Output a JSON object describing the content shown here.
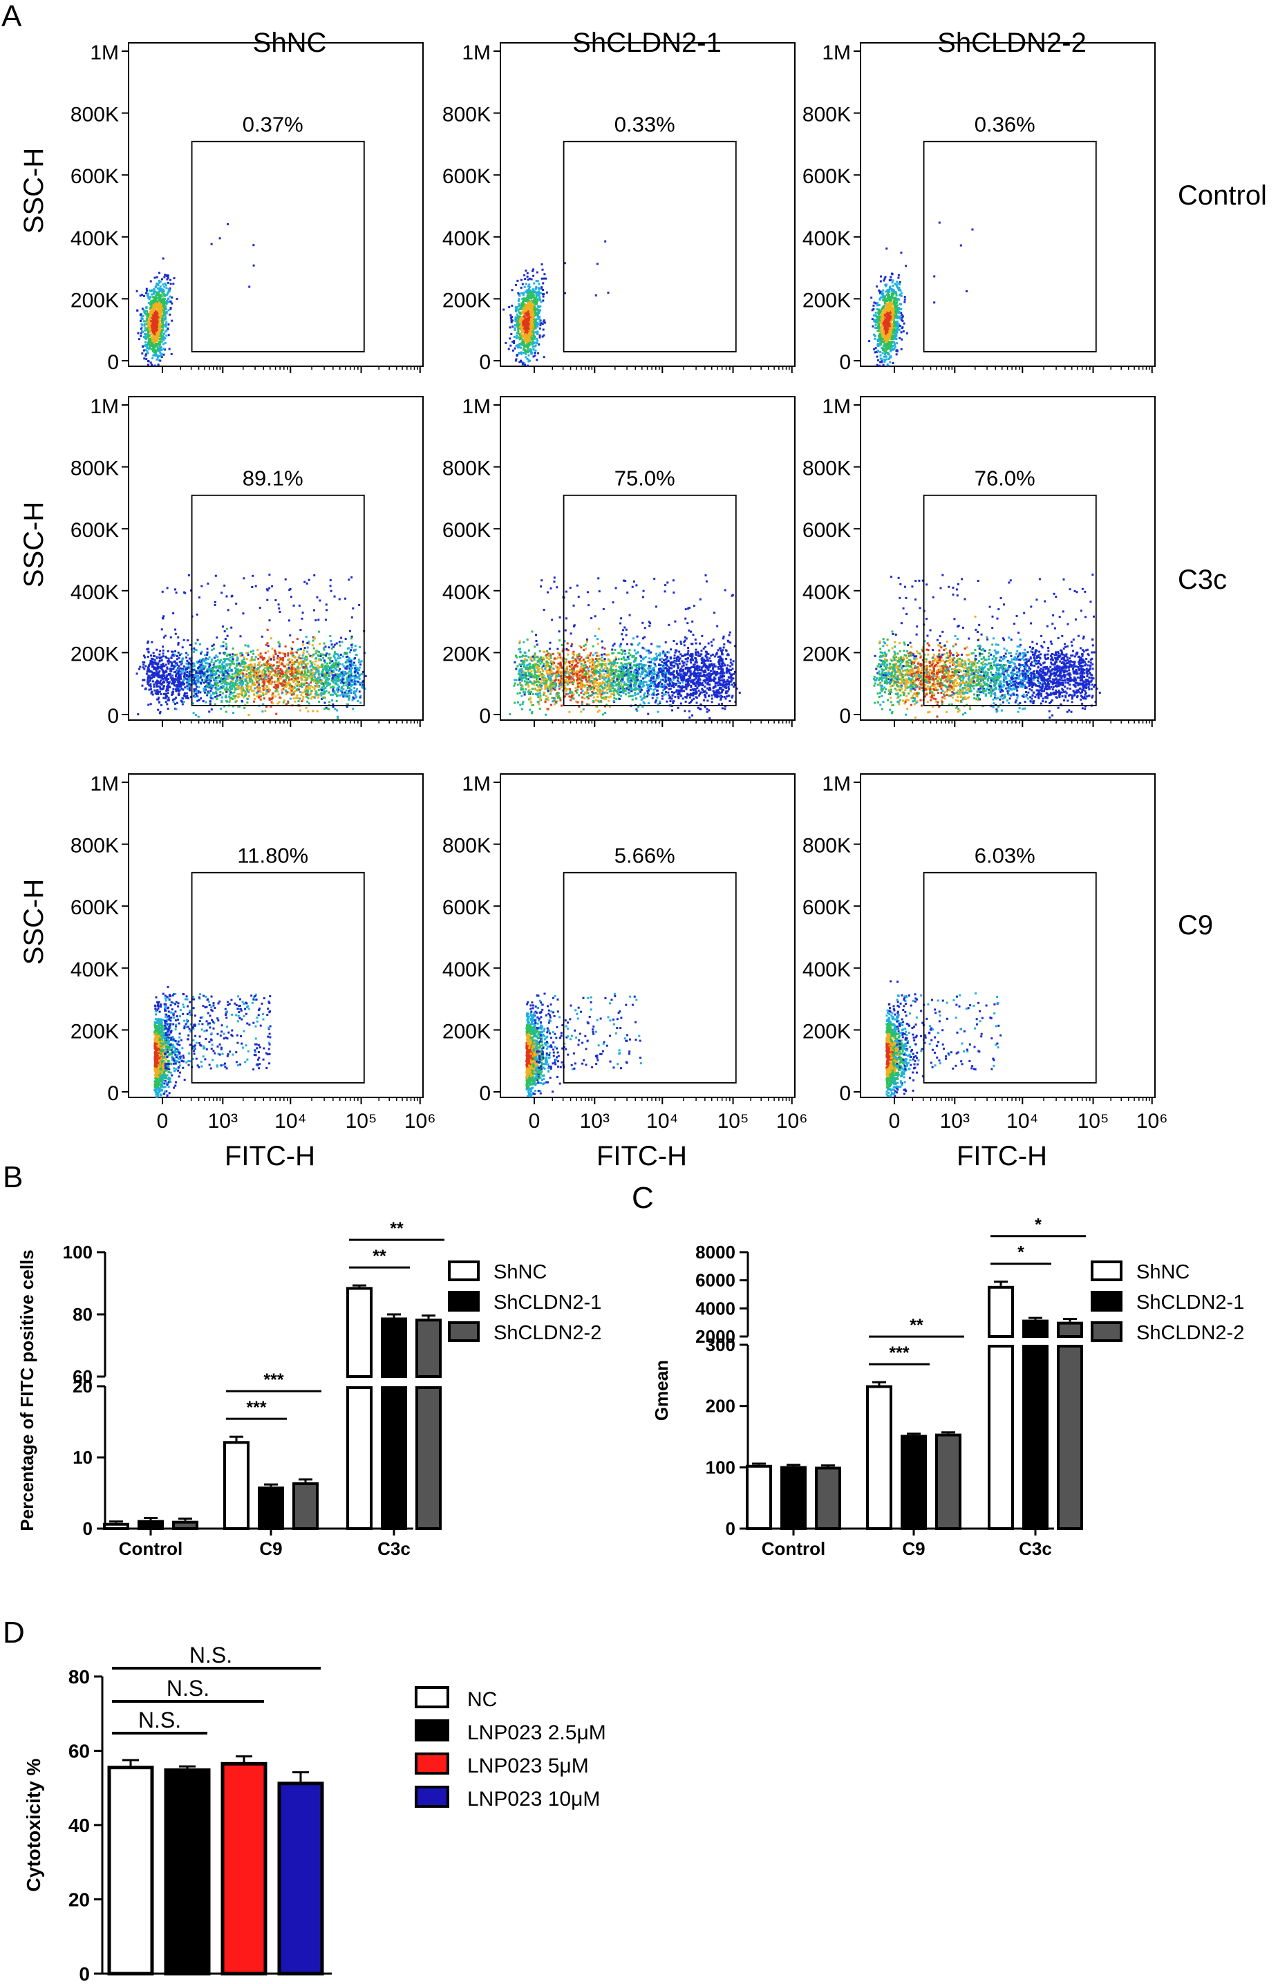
{
  "panel_letters": {
    "a": "A",
    "b": "B",
    "c": "C",
    "d": "D"
  },
  "colors": {
    "white": "#ffffff",
    "black": "#000000",
    "gray": "#555555",
    "red": "#ff1a1a",
    "blue": "#1a14b4"
  },
  "chart_data": [
    {
      "id": "A",
      "type": "scatter",
      "subtype": "flow-cytometry-density-grid",
      "column_titles": [
        "ShNC",
        "ShCLDN2-1",
        "ShCLDN2-2"
      ],
      "row_labels": [
        "Control",
        "C3c",
        "C9"
      ],
      "xlabel": "FITC-H",
      "ylabel": "SSC-H",
      "x_ticks": [
        "0",
        "10³",
        "10⁴",
        "10⁵",
        "10⁶"
      ],
      "y_ticks": [
        "0",
        "200K",
        "400K",
        "600K",
        "800K",
        "1M"
      ],
      "ylim": [
        0,
        1000000
      ],
      "gate_percentages": [
        [
          "0.37%",
          "0.33%",
          "0.36%"
        ],
        [
          "89.1%",
          "75.0%",
          "76.0%"
        ],
        [
          "11.80%",
          "5.66%",
          "6.03%"
        ]
      ],
      "population_profiles": [
        [
          "compact-negative",
          "compact-negative",
          "compact-negative"
        ],
        [
          "spread-positive",
          "spread-positive",
          "spread-positive"
        ],
        [
          "partial-positive",
          "partial-positive",
          "partial-positive"
        ]
      ]
    },
    {
      "id": "B",
      "type": "bar",
      "ylabel": "Percentage of FITC positive cells",
      "categories": [
        "Control",
        "C9",
        "C3c"
      ],
      "series": [
        {
          "name": "ShNC",
          "color": "#ffffff",
          "values": [
            0.8,
            12.3,
            88.8
          ],
          "errors": [
            0.2,
            0.6,
            0.5
          ]
        },
        {
          "name": "ShCLDN2-1",
          "color": "#000000",
          "values": [
            1.2,
            5.9,
            79.0
          ],
          "errors": [
            0.3,
            0.3,
            1.0
          ]
        },
        {
          "name": "ShCLDN2-2",
          "color": "#555555",
          "values": [
            1.1,
            6.5,
            78.6
          ],
          "errors": [
            0.3,
            0.4,
            1.0
          ]
        }
      ],
      "y_ticks_lower": [
        "0",
        "10",
        "20"
      ],
      "y_ticks_upper": [
        "60",
        "80",
        "100"
      ],
      "ylim_lower": [
        0,
        20
      ],
      "ylim_upper": [
        60,
        100
      ],
      "significance": [
        {
          "category": "C9",
          "from": 0,
          "to": 1,
          "label": "***"
        },
        {
          "category": "C9",
          "from": 0,
          "to": 2,
          "label": "***"
        },
        {
          "category": "C3c",
          "from": 0,
          "to": 1,
          "label": "**"
        },
        {
          "category": "C3c",
          "from": 0,
          "to": 2,
          "label": "**"
        }
      ]
    },
    {
      "id": "C",
      "type": "bar",
      "ylabel": "Gmean",
      "categories": [
        "Control",
        "C9",
        "C3c"
      ],
      "series": [
        {
          "name": "ShNC",
          "color": "#ffffff",
          "values": [
            104,
            234,
            5600
          ],
          "errors": [
            2,
            5,
            300
          ]
        },
        {
          "name": "ShCLDN2-1",
          "color": "#000000",
          "values": [
            102,
            153,
            3200
          ],
          "errors": [
            2,
            2,
            120
          ]
        },
        {
          "name": "ShCLDN2-2",
          "color": "#555555",
          "values": [
            101,
            155,
            3050
          ],
          "errors": [
            2,
            2,
            200
          ]
        }
      ],
      "y_ticks_lower": [
        "0",
        "100",
        "200",
        "300"
      ],
      "y_ticks_upper": [
        "2000",
        "4000",
        "6000",
        "8000"
      ],
      "ylim_lower": [
        0,
        300
      ],
      "ylim_upper": [
        2000,
        8000
      ],
      "significance": [
        {
          "category": "C9",
          "from": 0,
          "to": 1,
          "label": "***"
        },
        {
          "category": "C9",
          "from": 0,
          "to": 2,
          "label": "**"
        },
        {
          "category": "C3c",
          "from": 0,
          "to": 1,
          "label": "*"
        },
        {
          "category": "C3c",
          "from": 0,
          "to": 2,
          "label": "*"
        }
      ]
    },
    {
      "id": "D",
      "type": "bar",
      "ylabel": "Cytotoxicity %",
      "categories": [
        "NC",
        "LNP023 2.5μM",
        "LNP023 5μM",
        "LNP023 10μM"
      ],
      "values": [
        55.5,
        54.8,
        56.5,
        51.2
      ],
      "errors": [
        2.0,
        1.0,
        2.0,
        3.0
      ],
      "colors": [
        "#ffffff",
        "#000000",
        "#ff1a1a",
        "#1a14b4"
      ],
      "y_ticks": [
        "0",
        "20",
        "40",
        "60",
        "80"
      ],
      "ylim": [
        0,
        80
      ],
      "significance": [
        {
          "from": 0,
          "to": 1,
          "label": "N.S."
        },
        {
          "from": 0,
          "to": 2,
          "label": "N.S."
        },
        {
          "from": 0,
          "to": 3,
          "label": "N.S."
        }
      ]
    }
  ]
}
